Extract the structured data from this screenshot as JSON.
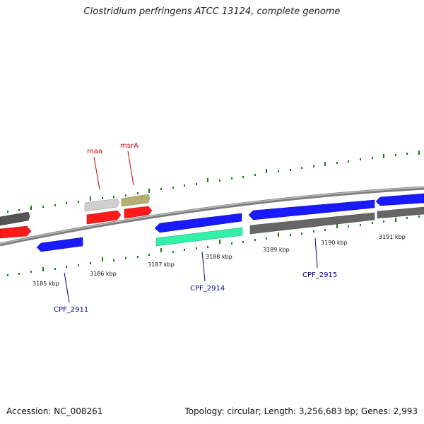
{
  "title": "Clostridium perfringens ATCC 13124, complete genome",
  "footer": {
    "accession": "Accession: NC_008261",
    "summary": "Topology: circular; Length: 3,256,683 bp; Genes: 2,993"
  },
  "colors": {
    "backbone": "#8c8c8c",
    "tick": "#1a7a1a",
    "red_label": "#cc0000",
    "blue_label": "#00008b"
  },
  "scale": {
    "labels": [
      "3185 kbp",
      "3186 kbp",
      "3187 kbp",
      "3188 kbp",
      "3189 kbp",
      "3190 kbp",
      "3191 kbp"
    ]
  },
  "gene_labels": [
    {
      "text": "maa",
      "color": "red"
    },
    {
      "text": "msrA",
      "color": "red"
    },
    {
      "text": "CPF_2911",
      "color": "blue"
    },
    {
      "text": "CPF_2914",
      "color": "blue"
    },
    {
      "text": "CPF_2915",
      "color": "blue"
    }
  ],
  "features": [
    {
      "name": "gray-left",
      "color": "#555555",
      "strand": "+",
      "track": "outer-top"
    },
    {
      "name": "red-left",
      "color": "#ff1a1a",
      "strand": "+",
      "track": "inner-top"
    },
    {
      "name": "maa-light",
      "color": "#cfcfcf",
      "strand": "+",
      "track": "outer-top"
    },
    {
      "name": "maa-red",
      "color": "#ff1a1a",
      "strand": "+",
      "track": "inner-top"
    },
    {
      "name": "msrA-khaki",
      "color": "#b5ae72",
      "strand": "+",
      "track": "outer-top"
    },
    {
      "name": "msrA-red",
      "color": "#ff1a1a",
      "strand": "+",
      "track": "inner-top"
    },
    {
      "name": "CPF_2911",
      "color": "#1a1aff",
      "strand": "-",
      "track": "inner-bottom"
    },
    {
      "name": "blue-mid",
      "color": "#1a1aff",
      "strand": "-",
      "track": "inner-bottom"
    },
    {
      "name": "CPF_2914",
      "color": "#33f0a8",
      "strand": "-",
      "track": "outer-bottom"
    },
    {
      "name": "CPF_2915",
      "color": "#1a1aff",
      "strand": "-",
      "track": "inner-top"
    },
    {
      "name": "gray-right",
      "color": "#666666",
      "strand": "-",
      "track": "outer-bottom"
    },
    {
      "name": "blue-right",
      "color": "#1a1aff",
      "strand": "-",
      "track": "inner-top"
    },
    {
      "name": "gray-far-right",
      "color": "#666666",
      "strand": "-",
      "track": "outer-bottom"
    }
  ]
}
